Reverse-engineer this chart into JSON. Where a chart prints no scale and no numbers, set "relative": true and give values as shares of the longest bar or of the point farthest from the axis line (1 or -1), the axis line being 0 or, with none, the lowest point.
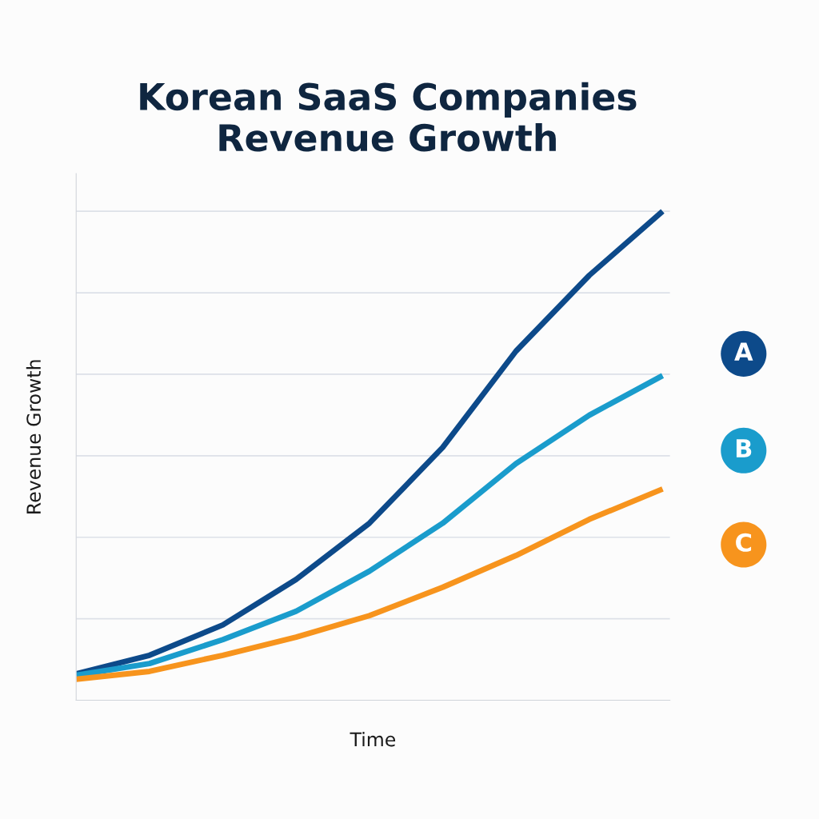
{
  "chart_data": {
    "type": "line",
    "title": "Korean SaaS Companies\nRevenue Growth",
    "xlabel": "Time",
    "ylabel": "Revenue Growth",
    "relative": true,
    "grid": "y",
    "legend": "right",
    "marker": "none",
    "line_style": "solid",
    "categories": [
      null,
      null,
      null,
      null,
      null,
      null,
      null,
      null,
      null
    ],
    "series": [
      {
        "name": "A",
        "color": "#0d4a8a",
        "values": [
          0.054,
          0.092,
          0.154,
          0.247,
          0.362,
          0.517,
          0.714,
          0.869,
          1.0
        ]
      },
      {
        "name": "B",
        "color": "#1a9ccc",
        "values": [
          0.051,
          0.075,
          0.124,
          0.182,
          0.264,
          0.362,
          0.484,
          0.583,
          0.664
        ]
      },
      {
        "name": "C",
        "color": "#f7941d",
        "values": [
          0.043,
          0.059,
          0.092,
          0.129,
          0.173,
          0.231,
          0.296,
          0.37,
          0.432
        ]
      }
    ]
  }
}
